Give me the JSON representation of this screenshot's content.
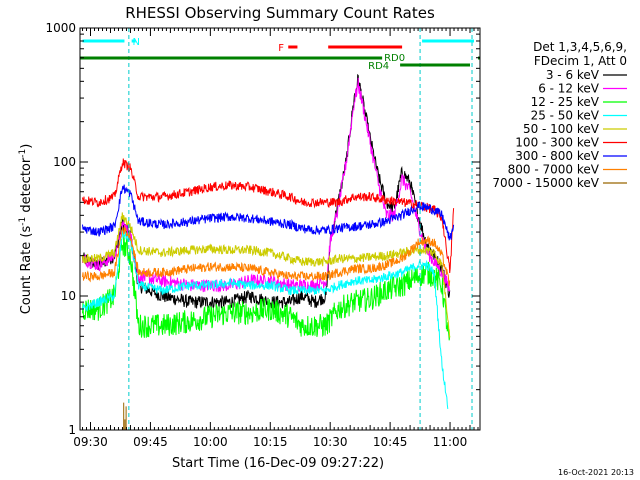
{
  "chart_data": {
    "type": "line",
    "title": "RHESSI Observing Summary Count Rates",
    "xlabel": "Start Time (16-Dec-09 09:27:22)",
    "ylabel_main": "Count Rate (s",
    "ylabel_sup1": "-1",
    "ylabel_mid": " detector",
    "ylabel_sup2": "-1",
    "ylabel_end": ")",
    "timestamp": "16-Oct-2021 20:13",
    "y_scale": "log",
    "ylim": [
      1,
      1000
    ],
    "xlim_minutes": [
      27.37,
      127.5
    ],
    "x_ticks": [
      {
        "minute": 30,
        "label": "09:30"
      },
      {
        "minute": 45,
        "label": "09:45"
      },
      {
        "minute": 60,
        "label": "10:00"
      },
      {
        "minute": 75,
        "label": "10:15"
      },
      {
        "minute": 90,
        "label": "10:30"
      },
      {
        "minute": 105,
        "label": "10:45"
      },
      {
        "minute": 120,
        "label": "11:00"
      }
    ],
    "y_ticks": [
      {
        "value": 1,
        "label": "1"
      },
      {
        "value": 10,
        "label": "10"
      },
      {
        "value": 100,
        "label": "100"
      },
      {
        "value": 1000,
        "label": "1000"
      }
    ],
    "legend_header": [
      "Det 1,3,4,5,6,9,",
      "FDecim 1, Att 0"
    ],
    "series": [
      {
        "name": "3 - 6 keV",
        "color": "#000000",
        "points": [
          [
            28,
            19
          ],
          [
            32,
            17
          ],
          [
            36,
            20
          ],
          [
            38,
            35
          ],
          [
            40,
            28
          ],
          [
            42,
            12
          ],
          [
            48,
            10
          ],
          [
            55,
            9
          ],
          [
            60,
            9
          ],
          [
            65,
            9
          ],
          [
            70,
            10
          ],
          [
            75,
            9
          ],
          [
            80,
            9
          ],
          [
            83,
            10
          ],
          [
            86,
            9
          ],
          [
            89,
            10
          ],
          [
            90,
            25
          ],
          [
            92,
            50
          ],
          [
            94,
            100
          ],
          [
            96,
            300
          ],
          [
            97,
            420
          ],
          [
            98,
            300
          ],
          [
            100,
            150
          ],
          [
            102,
            80
          ],
          [
            104,
            50
          ],
          [
            106,
            45
          ],
          [
            108,
            85
          ],
          [
            110,
            70
          ],
          [
            112,
            40
          ],
          [
            114,
            25
          ],
          [
            116,
            20
          ],
          [
            118,
            16
          ],
          [
            120,
            10
          ]
        ]
      },
      {
        "name": "6 - 12 keV",
        "color": "#ff00ff",
        "points": [
          [
            28,
            19
          ],
          [
            32,
            17
          ],
          [
            36,
            20
          ],
          [
            38,
            35
          ],
          [
            40,
            28
          ],
          [
            42,
            14
          ],
          [
            48,
            13
          ],
          [
            55,
            12
          ],
          [
            60,
            12
          ],
          [
            65,
            12
          ],
          [
            70,
            13
          ],
          [
            75,
            13
          ],
          [
            80,
            12
          ],
          [
            83,
            12
          ],
          [
            86,
            12
          ],
          [
            89,
            13
          ],
          [
            90,
            25
          ],
          [
            92,
            45
          ],
          [
            94,
            100
          ],
          [
            96,
            280
          ],
          [
            97,
            380
          ],
          [
            98,
            280
          ],
          [
            100,
            140
          ],
          [
            102,
            70
          ],
          [
            104,
            40
          ],
          [
            106,
            40
          ],
          [
            108,
            75
          ],
          [
            110,
            60
          ],
          [
            112,
            35
          ],
          [
            114,
            22
          ],
          [
            116,
            18
          ],
          [
            118,
            15
          ],
          [
            120,
            11
          ]
        ]
      },
      {
        "name": "12 - 25 keV",
        "color": "#00ff00",
        "points": [
          [
            28,
            8
          ],
          [
            32,
            8
          ],
          [
            36,
            10
          ],
          [
            38,
            25
          ],
          [
            40,
            20
          ],
          [
            42,
            6
          ],
          [
            48,
            6
          ],
          [
            55,
            6.5
          ],
          [
            60,
            7
          ],
          [
            65,
            7.5
          ],
          [
            70,
            7.5
          ],
          [
            75,
            8
          ],
          [
            80,
            7
          ],
          [
            83,
            6
          ],
          [
            86,
            6
          ],
          [
            89,
            6
          ],
          [
            92,
            8
          ],
          [
            96,
            9
          ],
          [
            100,
            9.5
          ],
          [
            104,
            11
          ],
          [
            108,
            12
          ],
          [
            112,
            14
          ],
          [
            114,
            15
          ],
          [
            116,
            14
          ],
          [
            118,
            12
          ],
          [
            120,
            4
          ]
        ]
      },
      {
        "name": "25 - 50 keV",
        "color": "#00ffff",
        "points": [
          [
            28,
            8
          ],
          [
            32,
            9
          ],
          [
            36,
            10
          ],
          [
            38,
            30
          ],
          [
            40,
            26
          ],
          [
            42,
            12
          ],
          [
            48,
            11
          ],
          [
            55,
            12
          ],
          [
            60,
            12
          ],
          [
            65,
            12.5
          ],
          [
            70,
            12
          ],
          [
            75,
            12
          ],
          [
            80,
            11
          ],
          [
            83,
            11
          ],
          [
            86,
            11
          ],
          [
            89,
            11
          ],
          [
            92,
            12
          ],
          [
            96,
            13
          ],
          [
            100,
            13
          ],
          [
            104,
            14
          ],
          [
            108,
            15
          ],
          [
            112,
            17
          ],
          [
            114,
            17
          ],
          [
            116,
            15
          ],
          [
            118,
            3
          ],
          [
            119.5,
            1.5
          ]
        ]
      },
      {
        "name": "50 - 100 keV",
        "color": "#cccc00",
        "points": [
          [
            28,
            19
          ],
          [
            32,
            19
          ],
          [
            36,
            21
          ],
          [
            38,
            40
          ],
          [
            40,
            33
          ],
          [
            42,
            22
          ],
          [
            48,
            21
          ],
          [
            55,
            22
          ],
          [
            60,
            22.5
          ],
          [
            65,
            22
          ],
          [
            70,
            22
          ],
          [
            75,
            21
          ],
          [
            80,
            19
          ],
          [
            83,
            18
          ],
          [
            86,
            18
          ],
          [
            89,
            18
          ],
          [
            92,
            19
          ],
          [
            96,
            19
          ],
          [
            100,
            19.5
          ],
          [
            104,
            20
          ],
          [
            108,
            21
          ],
          [
            112,
            22
          ],
          [
            114,
            22
          ],
          [
            116,
            21
          ],
          [
            118,
            17
          ],
          [
            120,
            5
          ]
        ]
      },
      {
        "name": "100 - 300 keV",
        "color": "#ff0000",
        "points": [
          [
            28,
            52
          ],
          [
            32,
            50
          ],
          [
            36,
            55
          ],
          [
            38,
            100
          ],
          [
            40,
            90
          ],
          [
            42,
            55
          ],
          [
            48,
            55
          ],
          [
            55,
            60
          ],
          [
            60,
            65
          ],
          [
            65,
            67
          ],
          [
            70,
            65
          ],
          [
            75,
            60
          ],
          [
            80,
            55
          ],
          [
            83,
            50
          ],
          [
            86,
            50
          ],
          [
            89,
            50
          ],
          [
            92,
            50
          ],
          [
            96,
            55
          ],
          [
            100,
            55
          ],
          [
            104,
            52
          ],
          [
            108,
            50
          ],
          [
            112,
            48
          ],
          [
            114,
            46
          ],
          [
            116,
            44
          ],
          [
            118,
            38
          ],
          [
            120,
            15
          ],
          [
            121,
            52
          ]
        ]
      },
      {
        "name": "300 - 800 keV",
        "color": "#0000ff",
        "points": [
          [
            28,
            32
          ],
          [
            32,
            30
          ],
          [
            36,
            33
          ],
          [
            38,
            65
          ],
          [
            40,
            58
          ],
          [
            42,
            36
          ],
          [
            48,
            34
          ],
          [
            55,
            36
          ],
          [
            60,
            38
          ],
          [
            65,
            39
          ],
          [
            70,
            38
          ],
          [
            75,
            36
          ],
          [
            80,
            34
          ],
          [
            83,
            32
          ],
          [
            86,
            31
          ],
          [
            89,
            31
          ],
          [
            92,
            32
          ],
          [
            96,
            33
          ],
          [
            100,
            34
          ],
          [
            104,
            36
          ],
          [
            108,
            40
          ],
          [
            112,
            47
          ],
          [
            114,
            46
          ],
          [
            116,
            44
          ],
          [
            118,
            40
          ],
          [
            120,
            26
          ],
          [
            121,
            35
          ]
        ]
      },
      {
        "name": "800 - 7000 keV",
        "color": "#ff8000",
        "points": [
          [
            28,
            14
          ],
          [
            32,
            14
          ],
          [
            36,
            15
          ],
          [
            38,
            32
          ],
          [
            40,
            28
          ],
          [
            42,
            15
          ],
          [
            48,
            15
          ],
          [
            55,
            16
          ],
          [
            60,
            16.5
          ],
          [
            65,
            16.5
          ],
          [
            70,
            16
          ],
          [
            75,
            15
          ],
          [
            80,
            14
          ],
          [
            83,
            14
          ],
          [
            86,
            14
          ],
          [
            89,
            14
          ],
          [
            92,
            15
          ],
          [
            96,
            16
          ],
          [
            100,
            16
          ],
          [
            104,
            17
          ],
          [
            108,
            19
          ],
          [
            112,
            25
          ],
          [
            114,
            26
          ],
          [
            116,
            25
          ],
          [
            118,
            20
          ],
          [
            120,
            12
          ]
        ]
      },
      {
        "name": "7000 - 15000 keV",
        "color": "#996600",
        "points": [
          [
            38.3,
            1.6
          ],
          [
            38.6,
            1.2
          ],
          [
            38.9,
            1.5
          ]
        ]
      }
    ],
    "flags": [
      {
        "name": "N",
        "color": "#00ffff"
      },
      {
        "name": "F",
        "color": "#ff0000"
      },
      {
        "name": "RD0",
        "color": "#008000"
      },
      {
        "name": "RD4",
        "color": "#008000"
      }
    ],
    "attenuator_lines_minutes": [
      39.6,
      112.5,
      125.5
    ]
  }
}
